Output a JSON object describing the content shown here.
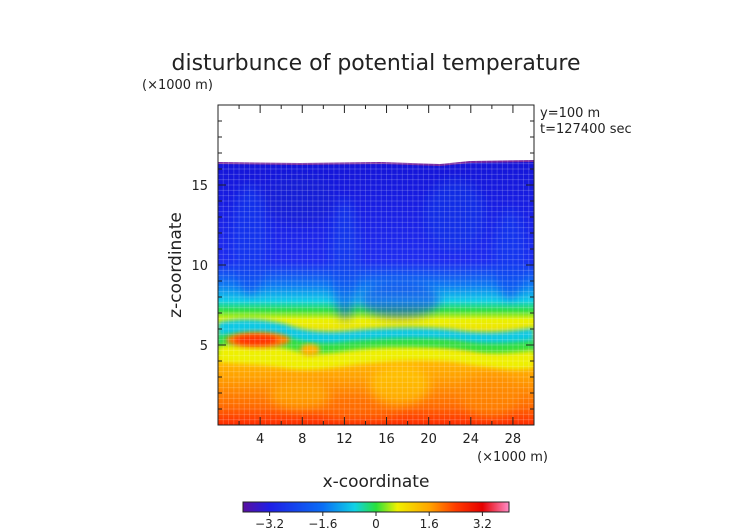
{
  "chart_data": {
    "type": "heatmap",
    "title": "disturbunce of potential temperature",
    "xlabel": "x-coordinate",
    "ylabel": "z-coordinate",
    "x_unit": "(×1000 m)",
    "y_unit": "(×1000 m)",
    "annotations": [
      "y=100 m",
      "t=127400 sec"
    ],
    "xlim": [
      0,
      30
    ],
    "ylim": [
      0,
      20
    ],
    "x_ticks": [
      4,
      8,
      12,
      16,
      20,
      24,
      28
    ],
    "y_ticks": [
      5,
      10,
      15
    ],
    "colorbar": {
      "range": [
        -4.0,
        4.0
      ],
      "ticks": [
        "−3.2",
        "−1.6",
        "0",
        "1.6",
        "3.2"
      ],
      "tick_values": [
        -3.2,
        -1.6,
        0,
        1.6,
        3.2
      ],
      "colors": [
        "#5a0fa0",
        "#1e1ee6",
        "#0a6ef5",
        "#10d2e6",
        "#28e03c",
        "#f0f000",
        "#ffa500",
        "#ff3c00",
        "#e60000",
        "#ff8cc8"
      ]
    },
    "regions": [
      {
        "name": "no-data above domain top",
        "z_from": 16.5,
        "z_to": 20,
        "value": null
      },
      {
        "name": "upper layer",
        "z_from": 7,
        "z_to": 16.5,
        "value": -3.0
      },
      {
        "name": "transition layer",
        "z_from": 4.8,
        "z_to": 7,
        "value": 0.0
      },
      {
        "name": "lower layer",
        "z_from": 0,
        "z_to": 4.8,
        "value": 1.8
      },
      {
        "name": "warm anomaly near surface-layer top",
        "x_center": 4,
        "z_center": 5.5,
        "value": 3.4
      }
    ]
  }
}
